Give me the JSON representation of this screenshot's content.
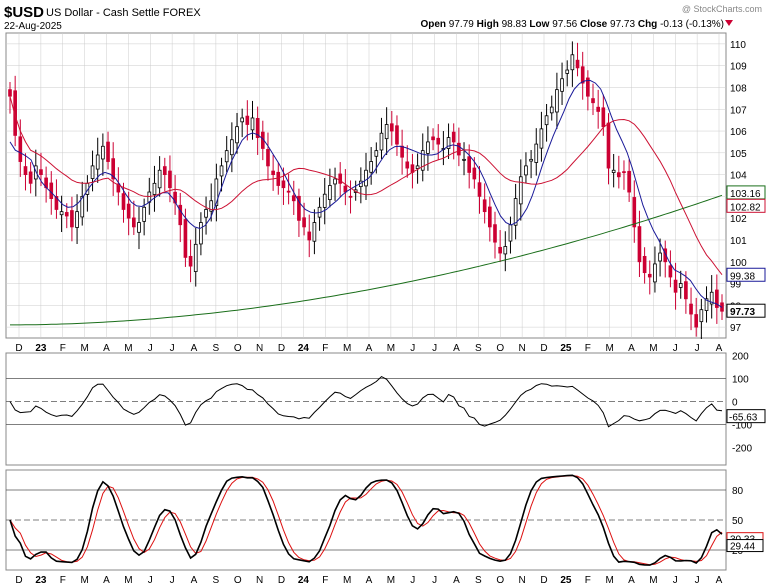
{
  "header": {
    "symbol": "$USD",
    "name": "US Dollar - Cash Settle",
    "exchange": "FOREX",
    "date": "22-Aug-2025",
    "watermark": "@ StockCharts.com",
    "open_label": "Open",
    "open": "97.79",
    "high_label": "High",
    "high": "98.83",
    "low_label": "Low",
    "low": "97.56",
    "close_label": "Close",
    "close": "97.73",
    "chg_label": "Chg",
    "chg": "-0.13 (-0.13%)"
  },
  "colors": {
    "up": "#000000",
    "down": "#cc0033",
    "ma_blue": "#1a1a99",
    "ma_red": "#cc1133",
    "ma_green": "#1a6e1a",
    "cci_pos": "#4c8a4c",
    "cci_neg": "#8b4040",
    "stoch_k": "#000000",
    "stoch_d": "#dd1111",
    "grid": "#cccccc"
  },
  "chart_data": [
    {
      "type": "candlestick",
      "panel": "price",
      "ylim": [
        96.5,
        110.5
      ],
      "yticks": [
        97,
        98,
        99,
        100,
        101,
        102,
        103,
        104,
        105,
        106,
        107,
        108,
        109,
        110
      ],
      "x_labels": [
        "D",
        "23",
        "F",
        "M",
        "A",
        "M",
        "J",
        "J",
        "A",
        "S",
        "O",
        "N",
        "D",
        "24",
        "F",
        "M",
        "A",
        "M",
        "J",
        "J",
        "A",
        "S",
        "O",
        "N",
        "D",
        "25",
        "F",
        "M",
        "A",
        "M",
        "J",
        "J",
        "A"
      ],
      "bold_x_labels": [
        "23",
        "24",
        "25"
      ],
      "grid": true,
      "closes": [
        107.6,
        105.8,
        104.6,
        104.0,
        103.6,
        104.4,
        104.0,
        103.4,
        102.9,
        102.4,
        102.3,
        102.1,
        101.6,
        102.3,
        103.0,
        103.6,
        104.4,
        104.9,
        105.3,
        104.6,
        103.8,
        103.2,
        102.4,
        102.0,
        101.6,
        101.8,
        102.5,
        103.2,
        103.6,
        104.2,
        104.0,
        103.4,
        102.7,
        101.7,
        100.2,
        99.8,
        100.8,
        101.8,
        102.4,
        102.8,
        103.8,
        104.4,
        105.1,
        105.6,
        106.2,
        106.6,
        106.3,
        106.6,
        105.7,
        105.2,
        104.4,
        104.0,
        103.5,
        103.4,
        103.2,
        102.8,
        101.9,
        101.6,
        101.0,
        101.8,
        102.5,
        103.1,
        103.5,
        103.8,
        103.6,
        103.2,
        103.0,
        103.3,
        103.7,
        104.2,
        104.6,
        105.1,
        105.9,
        106.3,
        106.0,
        105.4,
        104.8,
        104.3,
        104.1,
        104.4,
        105.1,
        105.5,
        105.6,
        105.4,
        105.2,
        105.7,
        105.5,
        104.9,
        104.7,
        104.1,
        103.8,
        103.0,
        102.3,
        101.6,
        100.9,
        100.4,
        100.7,
        101.7,
        102.9,
        103.9,
        104.4,
        104.7,
        105.4,
        106.1,
        106.7,
        107.1,
        107.9,
        108.4,
        108.8,
        109.5,
        108.9,
        108.2,
        107.6,
        107.3,
        106.9,
        106.2,
        104.3,
        104.2,
        103.9,
        104.1,
        103.2,
        101.6,
        100.0,
        99.5,
        99.3,
        99.9,
        100.4,
        100.0,
        99.3,
        98.6,
        99.0,
        98.3,
        97.6,
        97.0,
        97.8,
        98.3,
        98.6,
        97.9,
        97.73
      ],
      "last_close": "97.73",
      "series": [
        {
          "name": "",
          "kind": "ma",
          "color_key": "ma_blue",
          "last": "99.38"
        },
        {
          "name": "",
          "kind": "ma",
          "color_key": "ma_red",
          "last": "102.82"
        },
        {
          "name": "",
          "kind": "ma",
          "color_key": "ma_green",
          "last": "103.16"
        }
      ]
    },
    {
      "type": "line",
      "panel": "cci",
      "ylim": [
        -275,
        210
      ],
      "yticks": [
        -200,
        -100,
        0,
        100,
        200
      ],
      "ytick_labels": [
        "-200",
        "-100",
        "0",
        "100",
        "200"
      ],
      "reference_lines": [
        -100,
        0,
        100
      ],
      "last": "-65.63"
    },
    {
      "type": "line",
      "panel": "stochastic",
      "ylim": [
        0,
        100
      ],
      "yticks": [
        20,
        50,
        80
      ],
      "ytick_labels": [
        "20",
        "50",
        "80"
      ],
      "reference_lines": [
        20,
        50,
        80
      ],
      "last_k": "29.44",
      "last_d": "30.33"
    }
  ]
}
